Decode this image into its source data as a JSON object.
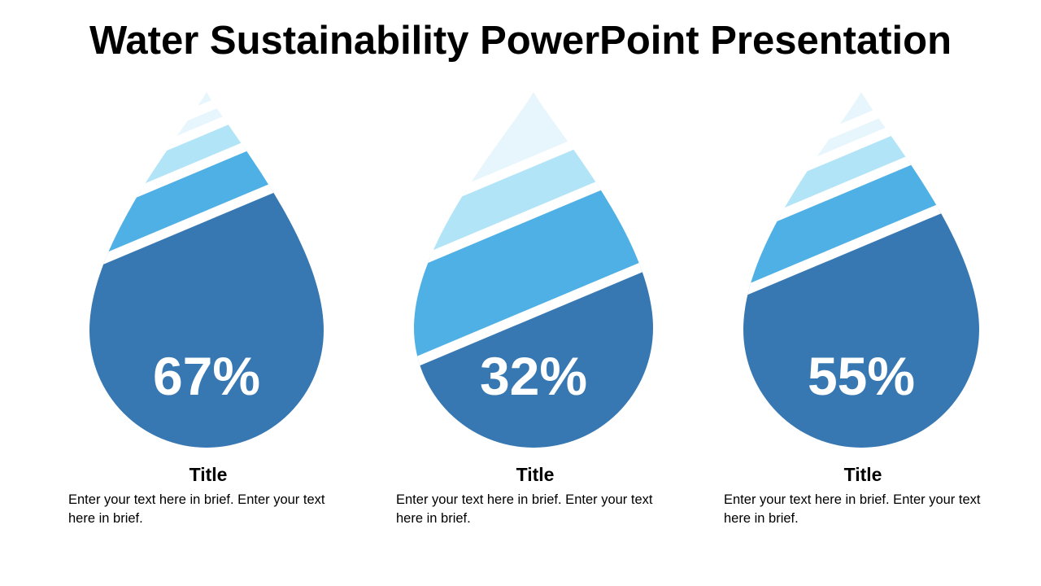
{
  "title": "Water Sustainability PowerPoint Presentation",
  "colors": {
    "dark": "#3778b3",
    "medium": "#4fb0e5",
    "light": "#b1e4f7",
    "lightest": "#e6f6fc"
  },
  "items": [
    {
      "percent": "67%",
      "value": 67,
      "title": "Title",
      "text": "Enter your text here in brief. Enter your text here in brief."
    },
    {
      "percent": "32%",
      "value": 32,
      "title": "Title",
      "text": "Enter your text here in brief. Enter your text here in brief."
    },
    {
      "percent": "55%",
      "value": 55,
      "title": "Title",
      "text": "Enter your text here in brief. Enter your text here in brief."
    }
  ]
}
